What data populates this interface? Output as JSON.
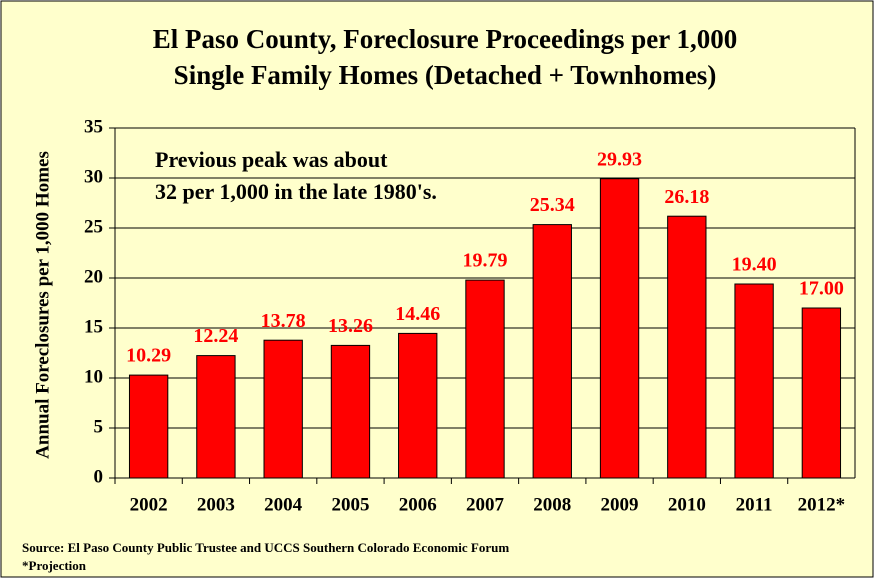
{
  "chart_data": {
    "type": "bar",
    "title": [
      "El Paso County, Foreclosure Proceedings per 1,000",
      "Single Family Homes (Detached + Townhomes)"
    ],
    "ylabel": "Annual Foreclosures per 1,000 Homes",
    "annotation": [
      "Previous peak was about",
      "32 per 1,000 in the late 1980's."
    ],
    "source": [
      "Source: El Paso County Public Trustee and UCCS Southern Colorado Economic Forum",
      "*Projection"
    ],
    "categories": [
      "2002",
      "2003",
      "2004",
      "2005",
      "2006",
      "2007",
      "2008",
      "2009",
      "2010",
      "2011",
      "2012*"
    ],
    "values": [
      10.29,
      12.24,
      13.78,
      13.26,
      14.46,
      19.79,
      25.34,
      29.93,
      26.18,
      19.4,
      17.0
    ],
    "value_labels": [
      "10.29",
      "12.24",
      "13.78",
      "13.26",
      "14.46",
      "19.79",
      "25.34",
      "29.93",
      "26.18",
      "19.40",
      "17.00"
    ],
    "color": "#ff0000",
    "label_color": "#ff0000",
    "ylim": [
      0,
      35
    ],
    "yticks": [
      0,
      5,
      10,
      15,
      20,
      25,
      30,
      35
    ],
    "grid": true
  }
}
